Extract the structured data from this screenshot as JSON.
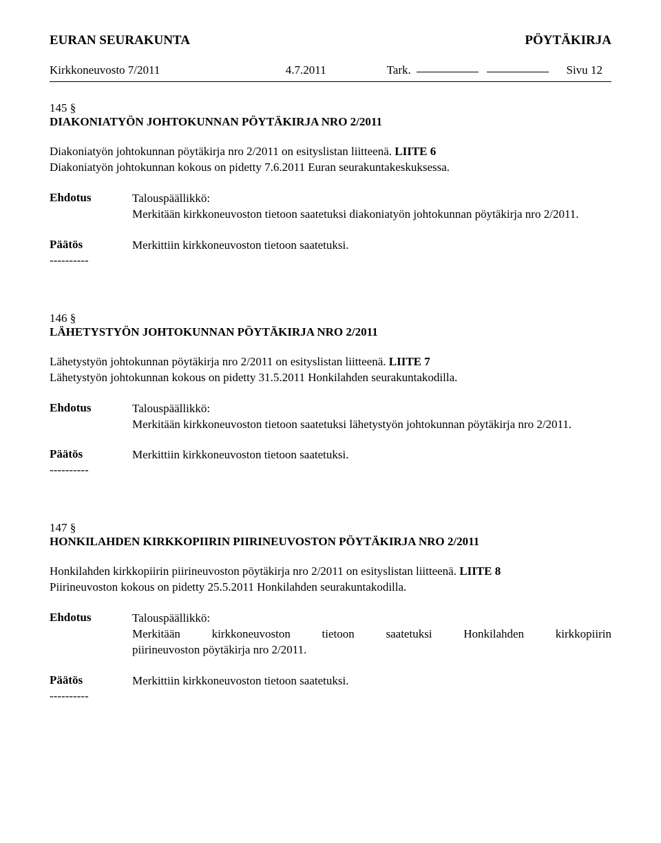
{
  "header": {
    "org": "EURAN SEURAKUNTA",
    "doctype": "PÖYTÄKIRJA",
    "body": "Kirkkoneuvosto  7/2011",
    "date": "4.7.2011",
    "tark_label": "Tark.",
    "page_label": "Sivu",
    "page_num": "12"
  },
  "sections": [
    {
      "num": "145 §",
      "heading": "DIAKONIATYÖN JOHTOKUNNAN PÖYTÄKIRJA NRO 2/2011",
      "intro1": "Diakoniatyön johtokunnan pöytäkirja nro 2/2011 on esityslistan liitteenä. ",
      "liite": "LIITE 6",
      "intro2": "Diakoniatyön johtokunnan kokous on pidetty 7.6.2011 Euran seurakuntakeskuksessa.",
      "ehdotus_label": "Ehdotus",
      "ehdotus_role": "Talouspäällikkö:",
      "ehdotus_body": "Merkitään kirkkoneuvoston tietoon saatetuksi diakoniatyön johtokunnan pöytäkirja nro 2/2011.",
      "paatos_label": "Päätös",
      "paatos_body": "Merkittiin kirkkoneuvoston tietoon saatetuksi.",
      "dashes": "----------"
    },
    {
      "num": "146 §",
      "heading": "LÄHETYSTYÖN JOHTOKUNNAN PÖYTÄKIRJA NRO 2/2011",
      "intro1": "Lähetystyön johtokunnan pöytäkirja nro 2/2011 on esityslistan liitteenä. ",
      "liite": "LIITE 7",
      "intro2": "Lähetystyön johtokunnan kokous on pidetty 31.5.2011 Honkilahden seurakuntakodilla.",
      "ehdotus_label": "Ehdotus",
      "ehdotus_role": "Talouspäällikkö:",
      "ehdotus_body": "Merkitään kirkkoneuvoston tietoon saatetuksi lähetystyön johtokunnan pöytäkirja nro 2/2011.",
      "paatos_label": "Päätös",
      "paatos_body": "Merkittiin kirkkoneuvoston tietoon saatetuksi.",
      "dashes": "----------"
    },
    {
      "num": "147 §",
      "heading": "HONKILAHDEN KIRKKOPIIRIN PIIRINEUVOSTON PÖYTÄKIRJA NRO 2/2011",
      "intro1": "Honkilahden kirkkopiirin piirineuvoston pöytäkirja nro 2/2011 on esityslistan liitteenä. ",
      "liite": "LIITE 8",
      "intro2": "Piirineuvoston kokous on pidetty 25.5.2011 Honkilahden seurakuntakodilla.",
      "ehdotus_label": "Ehdotus",
      "ehdotus_role": "Talouspäällikkö:",
      "ehdotus_body_wide": "Merkitään kirkkoneuvoston tietoon saatetuksi Honkilahden kirkkopiirin",
      "ehdotus_body_line2": "piirineuvoston pöytäkirja nro 2/2011.",
      "paatos_label": "Päätös",
      "paatos_body": "Merkittiin kirkkoneuvoston tietoon saatetuksi.",
      "dashes": "----------"
    }
  ]
}
